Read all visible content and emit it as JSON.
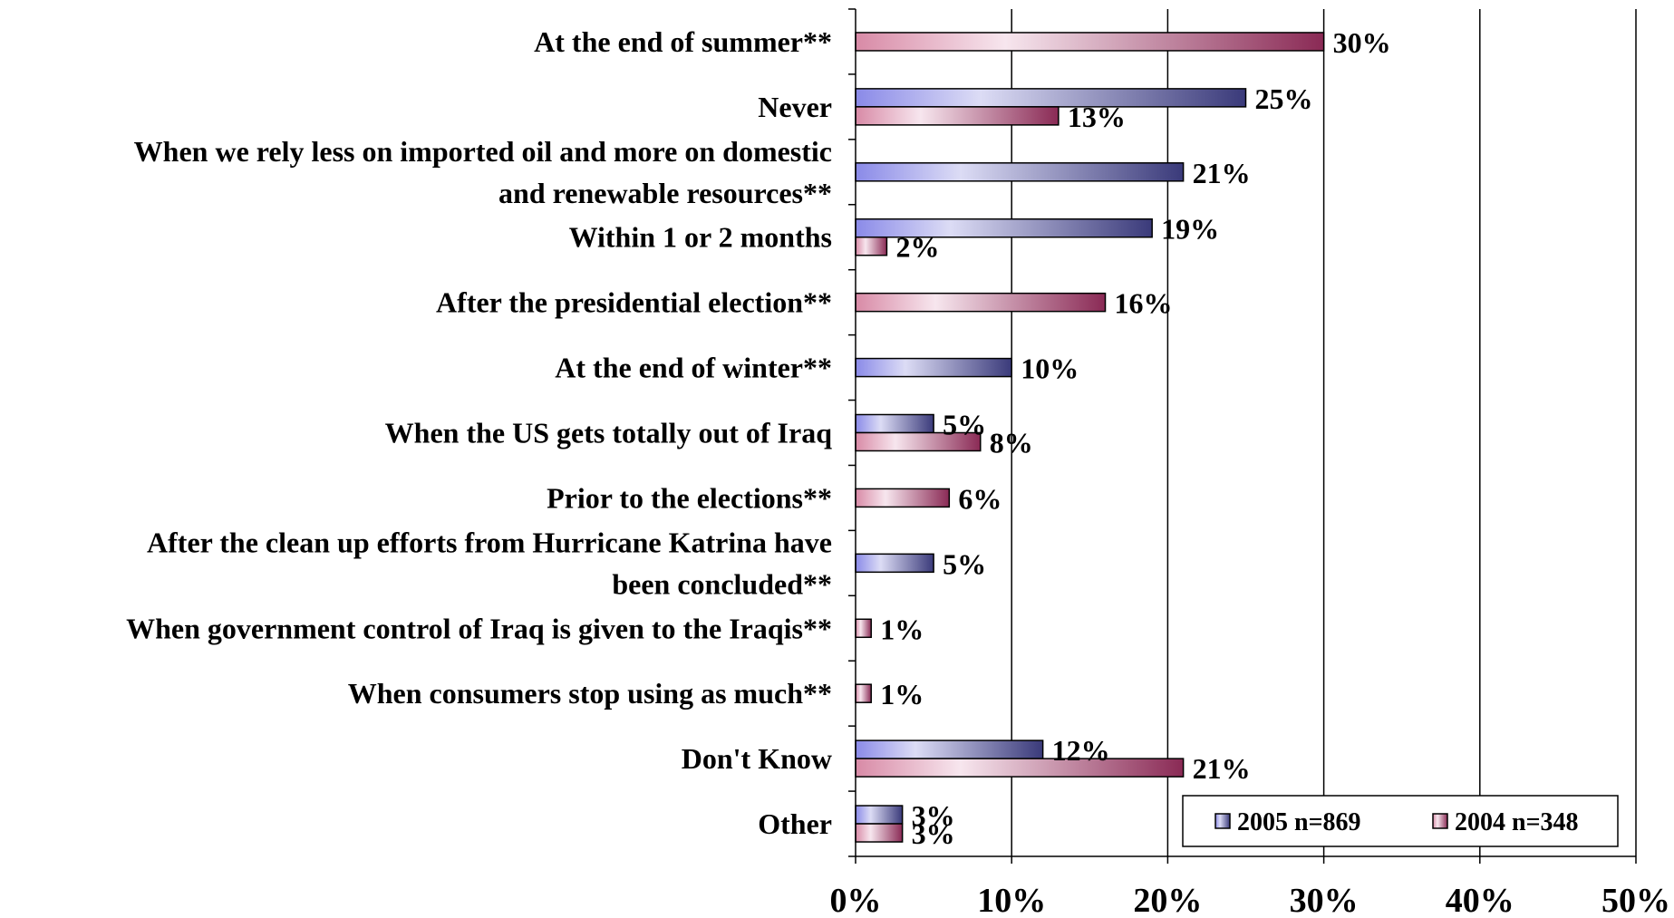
{
  "chart_data": {
    "type": "bar",
    "orientation": "horizontal",
    "categories": [
      [
        "At the end of summer**"
      ],
      [
        "Never"
      ],
      [
        "When we rely less on imported oil and more on domestic",
        "and renewable resources**"
      ],
      [
        "Within 1 or 2 months"
      ],
      [
        "After the presidential election**"
      ],
      [
        "At the end of winter**"
      ],
      [
        "When the US gets totally out of Iraq"
      ],
      [
        "Prior to the elections**"
      ],
      [
        "After the clean up efforts from Hurricane Katrina have",
        "been concluded**"
      ],
      [
        "When government control of Iraq is given to the Iraqis**"
      ],
      [
        "When consumers stop using as much**"
      ],
      [
        "Don't Know"
      ],
      [
        "Other"
      ]
    ],
    "series": [
      {
        "name": "2005 n=869",
        "color": "#3a3a7a",
        "gradient": [
          "#8a8ae8",
          "#dcdcf5",
          "#3a3a7a"
        ],
        "values": [
          null,
          25,
          21,
          19,
          null,
          10,
          5,
          null,
          5,
          null,
          null,
          12,
          3
        ],
        "labels": [
          "",
          "25%",
          "21%",
          "19%",
          "",
          "10%",
          "5%",
          "",
          "5%",
          "",
          "",
          "12%",
          "3%"
        ]
      },
      {
        "name": "2004 n=348",
        "color": "#8a2a55",
        "gradient": [
          "#d88aa6",
          "#f7e6ee",
          "#8a2a55"
        ],
        "values": [
          30,
          13,
          null,
          2,
          16,
          null,
          8,
          6,
          null,
          1,
          1,
          21,
          3
        ],
        "labels": [
          "30%",
          "13%",
          "",
          "2%",
          "16%",
          "",
          "8%",
          "6%",
          "",
          "1%",
          "1%",
          "21%",
          "3%"
        ]
      }
    ],
    "xlim": [
      0,
      50
    ],
    "xticks": [
      "0%",
      "10%",
      "20%",
      "30%",
      "40%",
      "50%"
    ],
    "xlabel": "",
    "ylabel": "",
    "title": "",
    "grid": "vertical",
    "legend_position": "bottom-right"
  }
}
